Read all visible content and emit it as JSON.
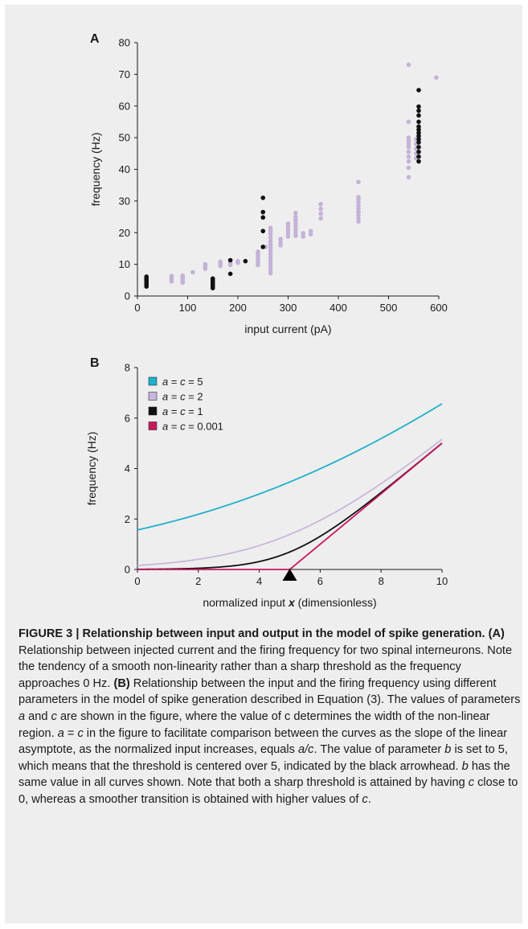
{
  "chart_data": [
    {
      "panel_label": "A",
      "type": "scatter",
      "xlabel": "input current (pA)",
      "ylabel": "frequency (Hz)",
      "xlim": [
        0,
        600
      ],
      "ylim": [
        0,
        80
      ],
      "x_ticks": [
        0,
        100,
        200,
        300,
        400,
        500,
        600
      ],
      "y_ticks": [
        0,
        10,
        20,
        30,
        40,
        50,
        60,
        70,
        80
      ],
      "grid": false,
      "series": [
        {
          "color": "#c4b2d8",
          "points": [
            [
              68,
              4.6
            ],
            [
              68,
              5.2
            ],
            [
              68,
              5.8
            ],
            [
              68,
              6.3
            ],
            [
              90,
              4.2
            ],
            [
              90,
              4.8
            ],
            [
              90,
              5.4
            ],
            [
              90,
              6.0
            ],
            [
              90,
              6.4
            ],
            [
              110,
              7.5
            ],
            [
              135,
              8.6
            ],
            [
              135,
              9.3
            ],
            [
              135,
              10.0
            ],
            [
              150,
              3.6
            ],
            [
              150,
              4.4
            ],
            [
              150,
              5.2
            ],
            [
              165,
              9.5
            ],
            [
              165,
              10.2
            ],
            [
              165,
              10.8
            ],
            [
              185,
              9.8
            ],
            [
              185,
              10.5
            ],
            [
              185,
              11.2
            ],
            [
              200,
              10.5
            ],
            [
              200,
              11.0
            ],
            [
              240,
              9.8
            ],
            [
              240,
              10.6
            ],
            [
              240,
              11.5
            ],
            [
              240,
              12.5
            ],
            [
              240,
              13.3
            ],
            [
              240,
              14.0
            ],
            [
              255,
              15.5
            ],
            [
              265,
              7.2
            ],
            [
              265,
              8.2
            ],
            [
              265,
              9.2
            ],
            [
              265,
              10.2
            ],
            [
              265,
              11.2
            ],
            [
              265,
              12.2
            ],
            [
              265,
              13.2
            ],
            [
              265,
              14.2
            ],
            [
              265,
              15.2
            ],
            [
              265,
              16.2
            ],
            [
              265,
              17.2
            ],
            [
              265,
              18.4
            ],
            [
              265,
              19.6
            ],
            [
              265,
              20.6
            ],
            [
              265,
              21.5
            ],
            [
              285,
              16.0
            ],
            [
              285,
              17.0
            ],
            [
              285,
              18.0
            ],
            [
              300,
              18.8
            ],
            [
              300,
              19.8
            ],
            [
              300,
              20.8
            ],
            [
              300,
              21.8
            ],
            [
              300,
              22.8
            ],
            [
              315,
              19.0
            ],
            [
              315,
              20.0
            ],
            [
              315,
              21.0
            ],
            [
              315,
              22.0
            ],
            [
              315,
              23.0
            ],
            [
              315,
              24.0
            ],
            [
              315,
              25.0
            ],
            [
              315,
              26.2
            ],
            [
              330,
              18.8
            ],
            [
              330,
              19.8
            ],
            [
              345,
              19.5
            ],
            [
              345,
              20.5
            ],
            [
              365,
              24.5
            ],
            [
              365,
              26.0
            ],
            [
              365,
              27.5
            ],
            [
              365,
              29.0
            ],
            [
              440,
              23.5
            ],
            [
              440,
              24.5
            ],
            [
              440,
              25.5
            ],
            [
              440,
              26.5
            ],
            [
              440,
              27.5
            ],
            [
              440,
              28.5
            ],
            [
              440,
              29.5
            ],
            [
              440,
              30.5
            ],
            [
              440,
              31.2
            ],
            [
              440,
              36.0
            ],
            [
              540,
              37.5
            ],
            [
              540,
              40.5
            ],
            [
              540,
              42.5
            ],
            [
              540,
              44.0
            ],
            [
              540,
              45.5
            ],
            [
              540,
              47.0
            ],
            [
              540,
              48.0
            ],
            [
              540,
              49.0
            ],
            [
              540,
              50.0
            ],
            [
              540,
              55.0
            ],
            [
              540,
              73.0
            ],
            [
              555,
              43.5
            ],
            [
              555,
              45.0
            ],
            [
              555,
              46.5
            ],
            [
              555,
              48.0
            ],
            [
              555,
              49.5
            ],
            [
              595,
              69.0
            ]
          ]
        },
        {
          "color": "#111111",
          "points": [
            [
              18,
              3.0
            ],
            [
              18,
              3.6
            ],
            [
              18,
              4.1
            ],
            [
              18,
              4.6
            ],
            [
              18,
              5.1
            ],
            [
              18,
              5.6
            ],
            [
              18,
              6.1
            ],
            [
              150,
              2.5
            ],
            [
              150,
              3.0
            ],
            [
              150,
              3.5
            ],
            [
              150,
              4.0
            ],
            [
              150,
              4.5
            ],
            [
              150,
              5.0
            ],
            [
              150,
              5.5
            ],
            [
              185,
              7.0
            ],
            [
              185,
              11.3
            ],
            [
              215,
              11.0
            ],
            [
              250,
              15.5
            ],
            [
              250,
              20.5
            ],
            [
              250,
              24.8
            ],
            [
              250,
              26.5
            ],
            [
              250,
              31.0
            ],
            [
              560,
              42.5
            ],
            [
              560,
              44.0
            ],
            [
              560,
              45.5
            ],
            [
              560,
              47.0
            ],
            [
              560,
              48.5
            ],
            [
              560,
              49.5
            ],
            [
              560,
              50.5
            ],
            [
              560,
              51.5
            ],
            [
              560,
              52.5
            ],
            [
              560,
              53.5
            ],
            [
              560,
              55.0
            ],
            [
              560,
              57.0
            ],
            [
              560,
              58.5
            ],
            [
              560,
              59.8
            ],
            [
              560,
              65.0
            ]
          ]
        }
      ]
    },
    {
      "panel_label": "B",
      "type": "line",
      "xlabel_prefix": "normalized input ",
      "xlabel_var": "x",
      "xlabel_suffix": " (dimensionless)",
      "ylabel": "frequency (Hz)",
      "xlim": [
        0,
        10
      ],
      "ylim": [
        0,
        8
      ],
      "x_ticks": [
        0,
        2,
        4,
        6,
        8,
        10
      ],
      "y_ticks": [
        0,
        2,
        4,
        6,
        8
      ],
      "threshold_marker_x": 5,
      "legend_position": "top-left",
      "grid": false,
      "series": [
        {
          "name_var": "a",
          "name_mid": " = ",
          "name_var2": "c",
          "name_val": " = 5",
          "color": "#1fb0cc",
          "a": 5,
          "b": 5,
          "c": 5
        },
        {
          "name_var": "a",
          "name_mid": " = ",
          "name_var2": "c",
          "name_val": " = 2",
          "color": "#c8b7dc",
          "a": 2,
          "b": 5,
          "c": 2
        },
        {
          "name_var": "a",
          "name_mid": " = ",
          "name_var2": "c",
          "name_val": " = 1",
          "color": "#111111",
          "a": 1,
          "b": 5,
          "c": 1
        },
        {
          "name_var": "a",
          "name_mid": " = ",
          "name_var2": "c",
          "name_val": " = 0.001",
          "color": "#c8185e",
          "a": 0.001,
          "b": 5,
          "c": 0.001
        }
      ]
    }
  ],
  "caption": {
    "heading": "FIGURE 3 | Relationship between input and output in the model of spike generation.",
    "a_label": "(A)",
    "a_text": " Relationship between injected current and the firing frequency for two spinal interneurons. Note the tendency of a smooth non-linearity rather than a sharp threshold as the frequency approaches 0 Hz. ",
    "b_label": "(B)",
    "b_text1": " Relationship between the input and the firing frequency using different parameters in the model of spike generation described in Equation (3). The values of parameters ",
    "var_a": "a",
    "b_text2": " and ",
    "var_c": "c",
    "b_text3": " are shown in the figure, where the value of c determines the width of the non-linear region. ",
    "eq_a": "a",
    "eq_mid": " = ",
    "eq_c": "c",
    "b_text4": " in the figure to facilitate comparison between the curves as the slope of the linear asymptote, as the normalized input increases, equals ",
    "ratio": "a/c",
    "b_text5": ". The value of parameter ",
    "var_b": "b",
    "b_text6": " is set to 5, which means that the threshold is centered over 5, indicated by the black arrowhead. ",
    "var_b2": "b",
    "b_text7": " has the same value in all curves shown. Note that both a sharp threshold is attained by having ",
    "var_c2": "c",
    "b_text8": " close to 0, whereas a smoother transition is obtained with higher values of ",
    "var_c3": "c",
    "b_text9": "."
  }
}
